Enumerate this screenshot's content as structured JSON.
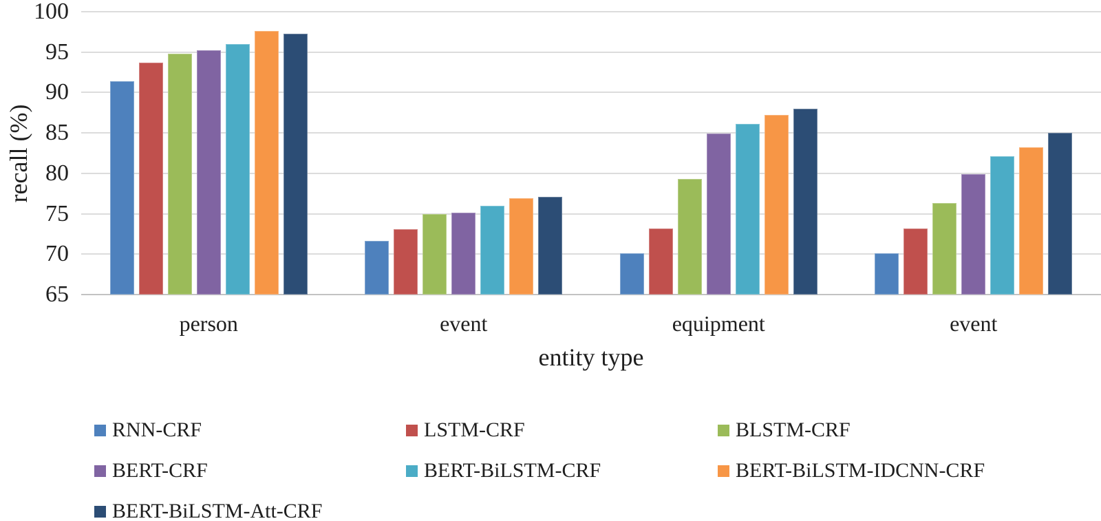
{
  "chart_data": {
    "type": "bar",
    "title": "",
    "xlabel": "entity type",
    "ylabel": "recall (%)",
    "ylim": [
      65,
      100
    ],
    "yticks": [
      65,
      70,
      75,
      80,
      85,
      90,
      95,
      100
    ],
    "grid": true,
    "legend_position": "bottom",
    "categories": [
      "person",
      "event",
      "equipment",
      "event"
    ],
    "series": [
      {
        "name": "RNN-CRF",
        "color": "#4E81BD",
        "values": [
          91.4,
          71.6,
          70.1,
          70.1
        ]
      },
      {
        "name": "LSTM-CRF",
        "color": "#C0504D",
        "values": [
          93.7,
          73.1,
          73.2,
          73.2
        ]
      },
      {
        "name": "BLSTM-CRF",
        "color": "#9BBB59",
        "values": [
          94.8,
          75.0,
          79.3,
          76.3
        ]
      },
      {
        "name": "BERT-CRF",
        "color": "#8064A2",
        "values": [
          95.2,
          75.1,
          84.9,
          79.9
        ]
      },
      {
        "name": "BERT-BiLSTM-CRF",
        "color": "#4BACC6",
        "values": [
          96.0,
          76.0,
          86.1,
          82.1
        ]
      },
      {
        "name": "BERT-BiLSTM-IDCNN-CRF",
        "color": "#F79646",
        "values": [
          97.6,
          76.9,
          87.2,
          83.2
        ]
      },
      {
        "name": "BERT-BiLSTM-Att-CRF",
        "color": "#2C4D75",
        "values": [
          97.3,
          77.1,
          88.0,
          85.0
        ]
      }
    ],
    "colors": {
      "gridline": "#DCDCDC",
      "axis_line": "#C2C2C2",
      "text": "#1F1F1F"
    }
  }
}
